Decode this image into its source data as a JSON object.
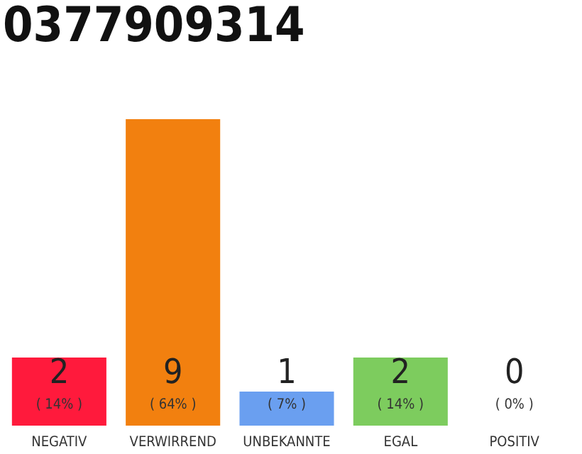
{
  "chart_data": {
    "type": "bar",
    "title": "0377909314",
    "categories": [
      "NEGATIV",
      "VERWIRREND",
      "UNBEKANNTE",
      "EGAL",
      "POSITIV"
    ],
    "values": [
      2,
      9,
      1,
      2,
      0
    ],
    "colors": [
      "#ff1a3c",
      "#f2800f",
      "#6a9ff0",
      "#7dcc5e",
      "#cccccc"
    ],
    "data_labels": true,
    "annotations": [
      "( 14% )",
      "( 64% )",
      "( 7% )",
      "( 14% )",
      "( 0% )"
    ],
    "grid": false,
    "legend": false
  }
}
